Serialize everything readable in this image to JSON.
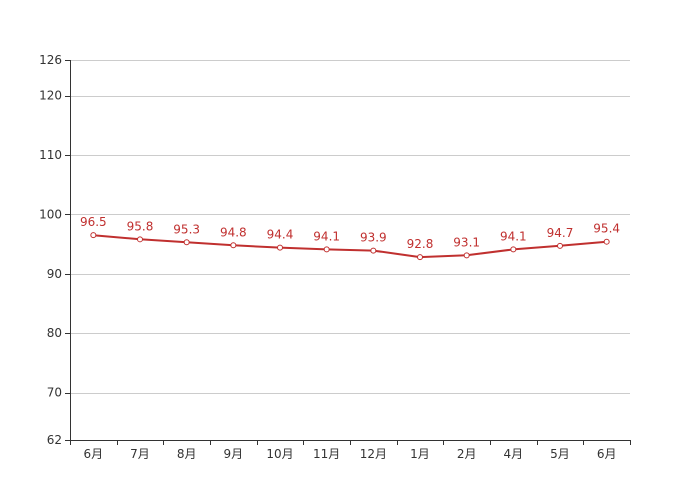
{
  "chart_data": {
    "type": "line",
    "categories": [
      "6月",
      "7月",
      "8月",
      "9月",
      "10月",
      "11月",
      "12月",
      "1月",
      "2月",
      "4月",
      "5月",
      "6月"
    ],
    "series": [
      {
        "values": [
          96.5,
          95.8,
          95.3,
          94.8,
          94.4,
          94.1,
          93.9,
          92.8,
          93.1,
          94.1,
          94.7,
          95.4
        ]
      }
    ],
    "data_labels": [
      "96.5",
      "95.8",
      "95.3",
      "94.8",
      "94.4",
      "94.1",
      "93.9",
      "92.8",
      "93.1",
      "94.1",
      "94.7",
      "95.4"
    ],
    "ylim": [
      62,
      126
    ],
    "yticks": [
      62,
      70,
      80,
      90,
      100,
      110,
      120,
      126
    ],
    "ytick_labels": [
      "62",
      "70",
      "80",
      "90",
      "100",
      "110",
      "120",
      "126"
    ],
    "grid": true,
    "legend": "none"
  },
  "colors": {
    "line": "#c0302f",
    "label": "#c0302f",
    "grid": "#cccccc",
    "axis": "#333333",
    "marker_fill": "#ffffff"
  }
}
